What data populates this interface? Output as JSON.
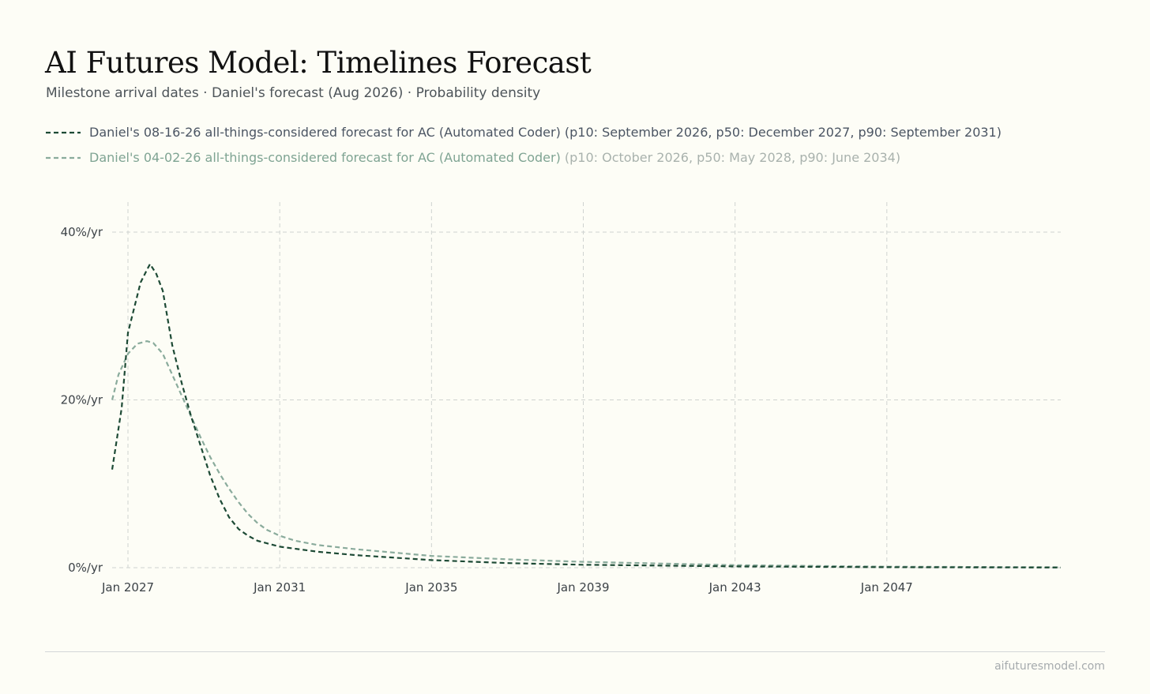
{
  "header": {
    "title": "AI Futures Model: Timelines Forecast",
    "subtitle": "Milestone arrival dates · Daniel's forecast (Aug 2026) · Probability density"
  },
  "legend": {
    "items": [
      {
        "label": "Daniel's 08-16-26 all-things-considered forecast for AC (Automated Coder)",
        "stats": "(p10: September 2026, p50: December 2027, p90: September 2031)",
        "color": "#1d4a35"
      },
      {
        "label": "Daniel's 04-02-26 all-things-considered forecast for AC (Automated Coder)",
        "stats": "(p10: October 2026, p50: May 2028, p90: June 2034)",
        "color": "#8aab9c"
      }
    ]
  },
  "footer": {
    "link": "aifuturesmodel.com"
  },
  "chart_data": {
    "type": "line",
    "title": "AI Futures Model: Timelines Forecast",
    "subtitle": "Milestone arrival dates · Daniel's forecast (Aug 2026) · Probability density",
    "x_axis": {
      "type": "date",
      "range": [
        "2026-08",
        "2051-08"
      ],
      "ticks": [
        "2027-01",
        "2031-01",
        "2035-01",
        "2039-01",
        "2043-01",
        "2047-01"
      ],
      "tick_labels": [
        "Jan 2027",
        "Jan 2031",
        "Jan 2035",
        "Jan 2039",
        "Jan 2043",
        "Jan 2047"
      ]
    },
    "y_axis": {
      "range": [
        0,
        40
      ],
      "ticks": [
        0,
        20,
        40
      ],
      "tick_labels": [
        "0%/yr",
        "20%/yr",
        "40%/yr"
      ]
    },
    "grid": true,
    "line_style": "dashed",
    "legend_position": "top",
    "series": [
      {
        "name": "Daniel's 08-16-26 all-things-considered forecast for AC (Automated Coder)",
        "color": "#1d4a35",
        "points": [
          [
            "2026-08",
            11.7
          ],
          [
            "2026-11",
            19.0
          ],
          [
            "2027-01",
            28.0
          ],
          [
            "2027-03",
            31.0
          ],
          [
            "2027-05",
            34.0
          ],
          [
            "2027-07",
            35.5
          ],
          [
            "2027-08",
            36.2
          ],
          [
            "2027-10",
            35.0
          ],
          [
            "2027-12",
            33.0
          ],
          [
            "2028-03",
            26.5
          ],
          [
            "2028-06",
            22.0
          ],
          [
            "2028-09",
            18.0
          ],
          [
            "2028-12",
            14.5
          ],
          [
            "2029-03",
            11.0
          ],
          [
            "2029-06",
            8.2
          ],
          [
            "2029-09",
            6.0
          ],
          [
            "2029-12",
            4.6
          ],
          [
            "2030-03",
            3.8
          ],
          [
            "2030-06",
            3.2
          ],
          [
            "2031-01",
            2.5
          ],
          [
            "2032-01",
            1.9
          ],
          [
            "2033-01",
            1.5
          ],
          [
            "2035-01",
            0.9
          ],
          [
            "2037-01",
            0.55
          ],
          [
            "2039-01",
            0.35
          ],
          [
            "2043-01",
            0.15
          ],
          [
            "2047-01",
            0.06
          ],
          [
            "2051-08",
            0.02
          ]
        ]
      },
      {
        "name": "Daniel's 04-02-26 all-things-considered forecast for AC (Automated Coder)",
        "color": "#8aab9c",
        "points": [
          [
            "2026-08",
            20.0
          ],
          [
            "2026-10",
            23.0
          ],
          [
            "2027-01",
            25.5
          ],
          [
            "2027-04",
            26.7
          ],
          [
            "2027-07",
            27.0
          ],
          [
            "2027-09",
            26.8
          ],
          [
            "2027-12",
            25.5
          ],
          [
            "2028-03",
            23.0
          ],
          [
            "2028-06",
            20.5
          ],
          [
            "2028-09",
            18.0
          ],
          [
            "2028-12",
            15.5
          ],
          [
            "2029-03",
            13.2
          ],
          [
            "2029-06",
            11.2
          ],
          [
            "2029-09",
            9.4
          ],
          [
            "2029-12",
            7.8
          ],
          [
            "2030-03",
            6.4
          ],
          [
            "2030-06",
            5.3
          ],
          [
            "2030-09",
            4.5
          ],
          [
            "2031-01",
            3.8
          ],
          [
            "2031-06",
            3.2
          ],
          [
            "2032-01",
            2.7
          ],
          [
            "2033-01",
            2.2
          ],
          [
            "2035-01",
            1.4
          ],
          [
            "2037-01",
            1.0
          ],
          [
            "2039-01",
            0.7
          ],
          [
            "2043-01",
            0.3
          ],
          [
            "2047-01",
            0.12
          ],
          [
            "2051-08",
            0.05
          ]
        ]
      }
    ]
  }
}
